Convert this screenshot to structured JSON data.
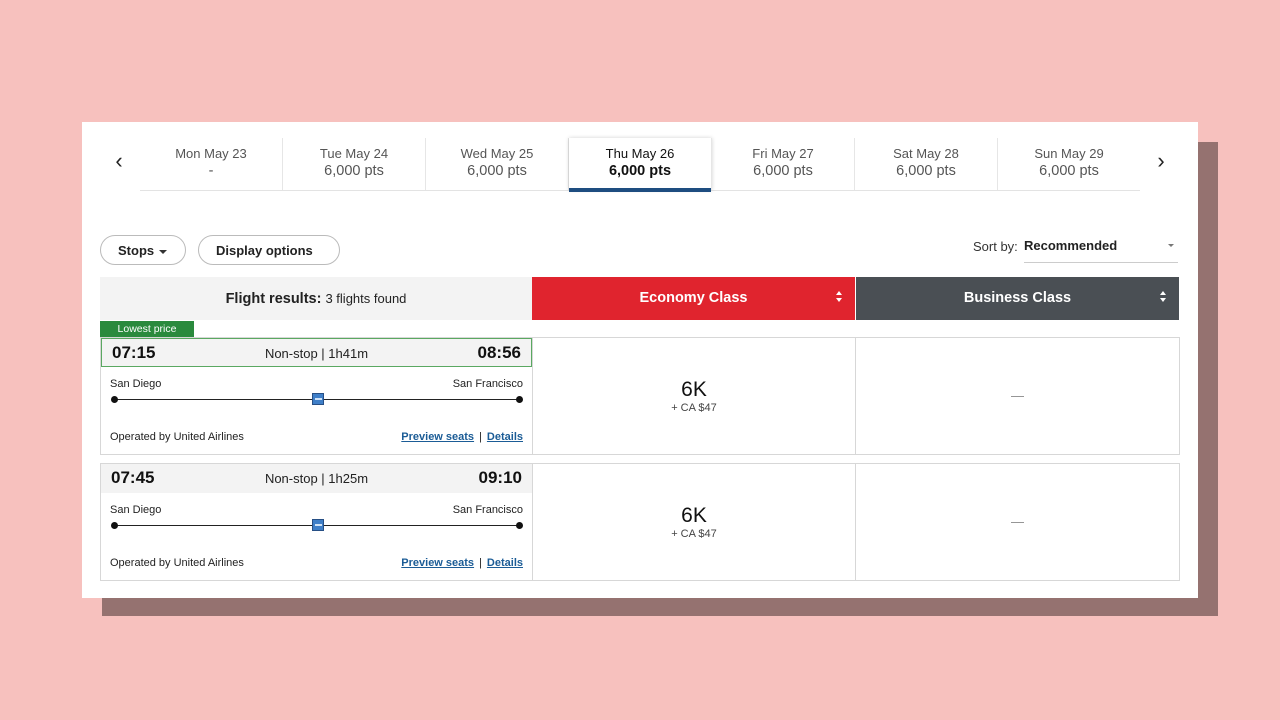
{
  "date_strip": {
    "prev_icon": "chevron-left-icon",
    "next_icon": "chevron-right-icon",
    "dates": [
      {
        "day": "Mon May 23",
        "price": "-"
      },
      {
        "day": "Tue May 24",
        "price": "6,000 pts"
      },
      {
        "day": "Wed May 25",
        "price": "6,000 pts"
      },
      {
        "day": "Thu May 26",
        "price": "6,000 pts"
      },
      {
        "day": "Fri May 27",
        "price": "6,000 pts"
      },
      {
        "day": "Sat May 28",
        "price": "6,000 pts"
      },
      {
        "day": "Sun May 29",
        "price": "6,000 pts"
      }
    ],
    "selected_day": "Thu May 26"
  },
  "filters": {
    "stops_label": "Stops",
    "display_options_label": "Display options"
  },
  "sort": {
    "label": "Sort by:",
    "value": "Recommended"
  },
  "results_header": {
    "prefix": "Flight results:",
    "count_text": "3 flights found",
    "economy_label": "Economy Class",
    "business_label": "Business Class"
  },
  "colors": {
    "economy_header": "#e0242e",
    "business_header": "#4a4f54",
    "lowest_price_badge": "#2a8a3d",
    "selected_date_underline": "#1e4d80",
    "link": "#1b5c96"
  },
  "lowest_price_badge": "Lowest price",
  "flights": [
    {
      "depart": "07:15",
      "arrive": "08:56",
      "duration": "Non-stop | 1h41m",
      "origin": "San Diego",
      "destination": "San Francisco",
      "operator": "Operated by United Airlines",
      "preview_seats": "Preview seats",
      "separator": "|",
      "details": "Details",
      "economy_points": "6K",
      "economy_fee": "+ CA $47",
      "business": "—"
    },
    {
      "depart": "07:45",
      "arrive": "09:10",
      "duration": "Non-stop | 1h25m",
      "origin": "San Diego",
      "destination": "San Francisco",
      "operator": "Operated by United Airlines",
      "preview_seats": "Preview seats",
      "separator": "|",
      "details": "Details",
      "economy_points": "6K",
      "economy_fee": "+ CA $47",
      "business": "—"
    }
  ]
}
